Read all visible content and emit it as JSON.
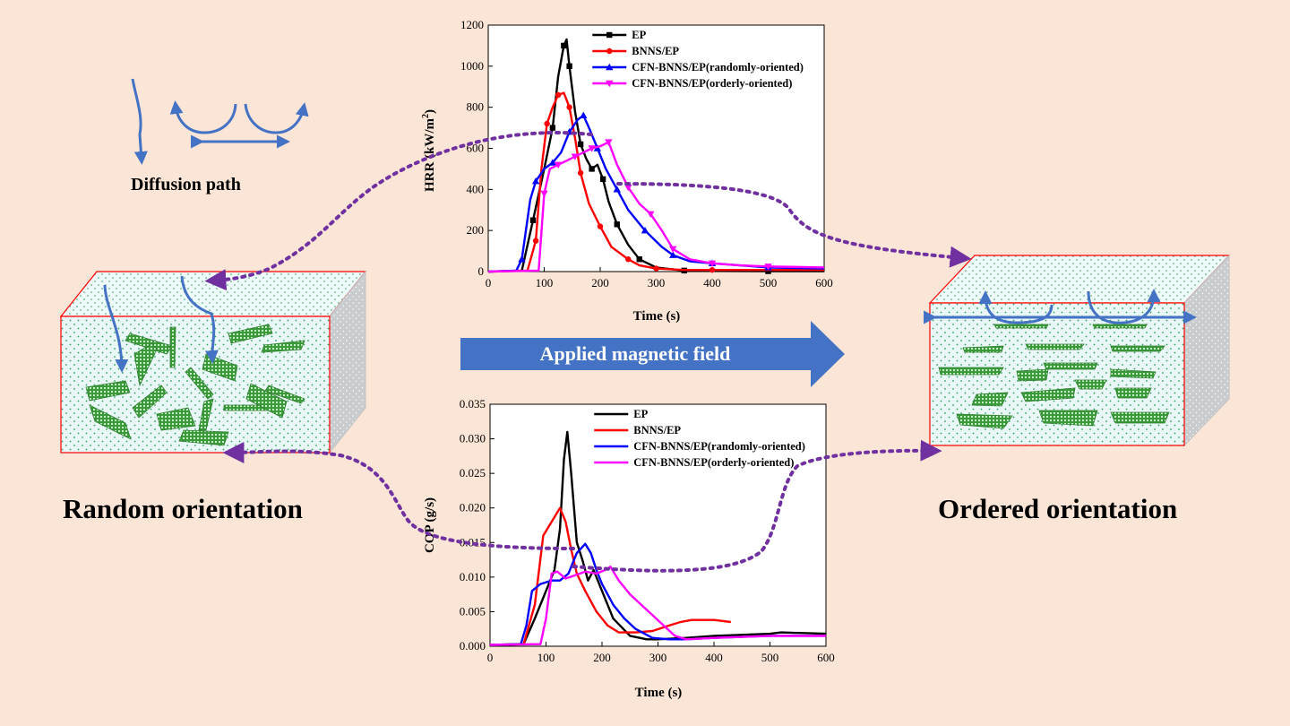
{
  "labels": {
    "diffusion_path": "Diffusion path",
    "applied_field": "Applied magnetic field",
    "random": "Random orientation",
    "ordered": "Ordered orientation"
  },
  "colors": {
    "background": "#fbe5d6",
    "arrow_blue": "#4472c4",
    "dotted_purple": "#7030a0",
    "box_edge": "#ff0000",
    "flake_green": "#2e8b2e",
    "ep": "#000000",
    "bnns": "#ff0000",
    "randomly": "#0000ff",
    "orderly": "#ff00ff"
  },
  "chart_data": [
    {
      "type": "line",
      "id": "hrr",
      "xlabel": "Time (s)",
      "ylabel": "HRR (kW/m",
      "ylabel_sup": "2",
      "ylabel_end": ")",
      "xlim": [
        0,
        600
      ],
      "ylim": [
        0,
        1200
      ],
      "xticks": [
        0,
        100,
        200,
        300,
        400,
        500,
        600
      ],
      "yticks": [
        0,
        200,
        400,
        600,
        800,
        1000,
        1200
      ],
      "tick_labels_x": [
        "0",
        "100",
        "200",
        "300",
        "400",
        "500",
        "600"
      ],
      "tick_labels_y": [
        "0",
        "200",
        "400",
        "600",
        "800",
        "1000",
        "1200"
      ],
      "legend_position": "top-right",
      "series": [
        {
          "name": "EP",
          "color": "#000000",
          "marker": "square",
          "x": [
            0,
            60,
            80,
            100,
            115,
            125,
            135,
            140,
            145,
            155,
            165,
            175,
            185,
            195,
            205,
            215,
            230,
            250,
            270,
            300,
            350,
            400,
            500,
            600
          ],
          "y": [
            0,
            5,
            250,
            500,
            700,
            950,
            1100,
            1130,
            1000,
            780,
            620,
            550,
            500,
            520,
            450,
            340,
            230,
            130,
            60,
            20,
            5,
            3,
            2,
            2
          ]
        },
        {
          "name": "BNNS/EP",
          "color": "#ff0000",
          "marker": "circle",
          "x": [
            0,
            70,
            85,
            95,
            105,
            115,
            125,
            135,
            145,
            155,
            165,
            180,
            200,
            220,
            250,
            270,
            300,
            350,
            400,
            500,
            600
          ],
          "y": [
            0,
            5,
            150,
            500,
            720,
            800,
            860,
            870,
            800,
            650,
            480,
            330,
            220,
            120,
            60,
            30,
            15,
            8,
            8,
            8,
            8
          ]
        },
        {
          "name": "CFN-BNNS/EP(randomly-oriented)",
          "color": "#0000ff",
          "marker": "triangle",
          "x": [
            0,
            50,
            60,
            75,
            85,
            100,
            115,
            130,
            145,
            160,
            170,
            180,
            195,
            210,
            230,
            250,
            280,
            310,
            330,
            360,
            400,
            450,
            500,
            600
          ],
          "y": [
            0,
            5,
            60,
            350,
            440,
            500,
            530,
            580,
            680,
            740,
            760,
            700,
            600,
            500,
            400,
            300,
            200,
            120,
            80,
            50,
            40,
            30,
            20,
            15
          ]
        },
        {
          "name": "CFN-BNNS/EP(orderly-oriented)",
          "color": "#ff00ff",
          "marker": "triangle-down",
          "x": [
            0,
            90,
            100,
            110,
            125,
            140,
            155,
            170,
            185,
            200,
            215,
            230,
            250,
            270,
            290,
            310,
            330,
            360,
            400,
            450,
            500,
            600
          ],
          "y": [
            0,
            5,
            380,
            500,
            520,
            540,
            560,
            580,
            600,
            610,
            630,
            520,
            410,
            330,
            280,
            200,
            110,
            60,
            40,
            30,
            25,
            20
          ]
        }
      ]
    },
    {
      "type": "line",
      "id": "cop",
      "xlabel": "Time (s)",
      "ylabel": "COP (g/s)",
      "xlim": [
        0,
        600
      ],
      "ylim": [
        0,
        0.035
      ],
      "xticks": [
        0,
        100,
        200,
        300,
        400,
        500,
        600
      ],
      "yticks": [
        0,
        0.005,
        0.01,
        0.015,
        0.02,
        0.025,
        0.03,
        0.035
      ],
      "tick_labels_x": [
        "0",
        "100",
        "200",
        "300",
        "400",
        "500",
        "600"
      ],
      "tick_labels_y": [
        "0.000",
        "0.005",
        "0.010",
        "0.015",
        "0.020",
        "0.025",
        "0.030",
        "0.035"
      ],
      "legend_position": "top-right",
      "series": [
        {
          "name": "EP",
          "color": "#000000",
          "x": [
            0,
            60,
            80,
            100,
            115,
            125,
            132,
            138,
            145,
            155,
            165,
            175,
            185,
            200,
            220,
            250,
            280,
            300,
            350,
            400,
            500,
            520,
            600
          ],
          "y": [
            0.0002,
            0.0003,
            0.004,
            0.008,
            0.011,
            0.017,
            0.027,
            0.031,
            0.025,
            0.015,
            0.0125,
            0.0095,
            0.011,
            0.008,
            0.004,
            0.0015,
            0.001,
            0.001,
            0.0012,
            0.0015,
            0.0018,
            0.002,
            0.0018
          ]
        },
        {
          "name": "BNNS/EP",
          "color": "#ff0000",
          "x": [
            0,
            60,
            80,
            95,
            110,
            125,
            135,
            145,
            155,
            170,
            190,
            210,
            230,
            260,
            290,
            320,
            340,
            360,
            400,
            430
          ],
          "y": [
            0.0002,
            0.0003,
            0.006,
            0.016,
            0.018,
            0.02,
            0.018,
            0.014,
            0.0105,
            0.008,
            0.005,
            0.003,
            0.002,
            0.002,
            0.0022,
            0.003,
            0.0035,
            0.0038,
            0.0038,
            0.0035
          ]
        },
        {
          "name": "CFN-BNNS/EP(randomly-oriented)",
          "color": "#0000ff",
          "x": [
            0,
            55,
            65,
            75,
            90,
            110,
            125,
            140,
            155,
            170,
            180,
            190,
            200,
            220,
            240,
            260,
            290,
            320,
            350,
            400,
            500,
            600
          ],
          "y": [
            0.0002,
            0.0003,
            0.003,
            0.008,
            0.009,
            0.0095,
            0.0095,
            0.0105,
            0.0135,
            0.0148,
            0.0135,
            0.011,
            0.009,
            0.006,
            0.004,
            0.0025,
            0.0012,
            0.001,
            0.001,
            0.0012,
            0.0015,
            0.0015
          ]
        },
        {
          "name": "CFN-BNNS/EP(orderly-oriented)",
          "color": "#ff00ff",
          "x": [
            0,
            90,
            100,
            110,
            120,
            135,
            150,
            170,
            190,
            205,
            215,
            230,
            250,
            270,
            290,
            310,
            330,
            350,
            400,
            500,
            600
          ],
          "y": [
            0.0002,
            0.0003,
            0.004,
            0.0105,
            0.0108,
            0.0098,
            0.0102,
            0.0108,
            0.0105,
            0.011,
            0.0115,
            0.0095,
            0.0075,
            0.006,
            0.0045,
            0.003,
            0.0015,
            0.001,
            0.0012,
            0.0015,
            0.0015
          ]
        }
      ]
    }
  ]
}
